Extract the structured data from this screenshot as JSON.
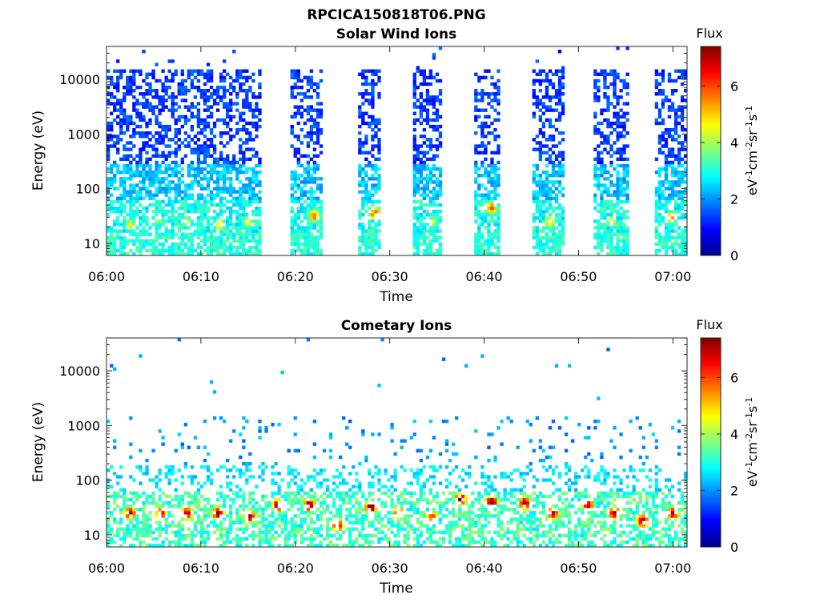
{
  "figure": {
    "title": "RPCICA150818T06.PNG"
  },
  "chart_data": [
    {
      "type": "heatmap",
      "title": "Solar Wind Ions",
      "xlabel": "Time",
      "ylabel": "Energy (eV)",
      "x_ticks": [
        "06:00",
        "06:10",
        "06:20",
        "06:30",
        "06:40",
        "06:50",
        "07:00"
      ],
      "xlim_minutes": [
        0,
        61.5
      ],
      "y_ticks": [
        "10",
        "100",
        "1000",
        "10000"
      ],
      "y_scale": "log",
      "ylim": [
        6,
        40000
      ],
      "colorbar": {
        "label": "Flux",
        "unit_label": "eV-1cm-2sr-1s-1",
        "ticks": [
          "0",
          "2",
          "4",
          "6"
        ],
        "clim": [
          0,
          7.4
        ],
        "colormap": "jet"
      },
      "flux_gaps_minutes": [
        [
          16.5,
          19.5
        ],
        [
          22.8,
          26.5
        ],
        [
          29.2,
          32.5
        ],
        [
          35.5,
          39.0
        ],
        [
          41.8,
          45.0
        ],
        [
          48.5,
          51.5
        ],
        [
          55.5,
          58.0
        ]
      ],
      "peak_bands": [
        {
          "t_minutes": 2.5,
          "energy_eV": 22,
          "flux": 4.5
        },
        {
          "t_minutes": 5.5,
          "energy_eV": 28,
          "flux": 4.0
        },
        {
          "t_minutes": 8.5,
          "energy_eV": 25,
          "flux": 4.2
        },
        {
          "t_minutes": 12.0,
          "energy_eV": 22,
          "flux": 4.8
        },
        {
          "t_minutes": 15.0,
          "energy_eV": 25,
          "flux": 4.5
        },
        {
          "t_minutes": 22.0,
          "energy_eV": 32,
          "flux": 5.6
        },
        {
          "t_minutes": 28.5,
          "energy_eV": 35,
          "flux": 6.0
        },
        {
          "t_minutes": 34.5,
          "energy_eV": 25,
          "flux": 4.2
        },
        {
          "t_minutes": 40.8,
          "energy_eV": 45,
          "flux": 5.8
        },
        {
          "t_minutes": 47.0,
          "energy_eV": 25,
          "flux": 4.8
        },
        {
          "t_minutes": 53.5,
          "energy_eV": 25,
          "flux": 4.5
        },
        {
          "t_minutes": 59.8,
          "energy_eV": 30,
          "flux": 5.2
        }
      ]
    },
    {
      "type": "heatmap",
      "title": "Cometary Ions",
      "xlabel": "Time",
      "ylabel": "Energy (eV)",
      "x_ticks": [
        "06:00",
        "06:10",
        "06:20",
        "06:30",
        "06:40",
        "06:50",
        "07:00"
      ],
      "xlim_minutes": [
        0,
        61.5
      ],
      "y_ticks": [
        "10",
        "100",
        "1000",
        "10000"
      ],
      "y_scale": "log",
      "ylim": [
        6,
        40000
      ],
      "colorbar": {
        "label": "Flux",
        "unit_label": "eV-1cm-2sr-1s-1",
        "ticks": [
          "0",
          "2",
          "4",
          "6"
        ],
        "clim": [
          0,
          7.4
        ],
        "colormap": "jet"
      },
      "peak_bands": [
        {
          "t_minutes": 2.5,
          "energy_eV": 25,
          "flux": 7.0
        },
        {
          "t_minutes": 5.8,
          "energy_eV": 25,
          "flux": 6.5
        },
        {
          "t_minutes": 8.5,
          "energy_eV": 25,
          "flux": 6.8
        },
        {
          "t_minutes": 11.8,
          "energy_eV": 25,
          "flux": 7.2
        },
        {
          "t_minutes": 15.2,
          "energy_eV": 22,
          "flux": 7.0
        },
        {
          "t_minutes": 18.2,
          "energy_eV": 35,
          "flux": 7.2
        },
        {
          "t_minutes": 21.5,
          "energy_eV": 35,
          "flux": 7.3
        },
        {
          "t_minutes": 24.5,
          "energy_eV": 15,
          "flux": 6.8
        },
        {
          "t_minutes": 28.0,
          "energy_eV": 32,
          "flux": 7.3
        },
        {
          "t_minutes": 31.0,
          "energy_eV": 25,
          "flux": 6.5
        },
        {
          "t_minutes": 34.5,
          "energy_eV": 22,
          "flux": 6.0
        },
        {
          "t_minutes": 37.5,
          "energy_eV": 45,
          "flux": 7.3
        },
        {
          "t_minutes": 40.8,
          "energy_eV": 40,
          "flux": 7.3
        },
        {
          "t_minutes": 44.3,
          "energy_eV": 38,
          "flux": 7.2
        },
        {
          "t_minutes": 47.3,
          "energy_eV": 25,
          "flux": 6.8
        },
        {
          "t_minutes": 51.0,
          "energy_eV": 35,
          "flux": 6.8
        },
        {
          "t_minutes": 53.8,
          "energy_eV": 25,
          "flux": 7.0
        },
        {
          "t_minutes": 56.8,
          "energy_eV": 18,
          "flux": 7.2
        },
        {
          "t_minutes": 60.0,
          "energy_eV": 25,
          "flux": 7.0
        }
      ]
    }
  ]
}
